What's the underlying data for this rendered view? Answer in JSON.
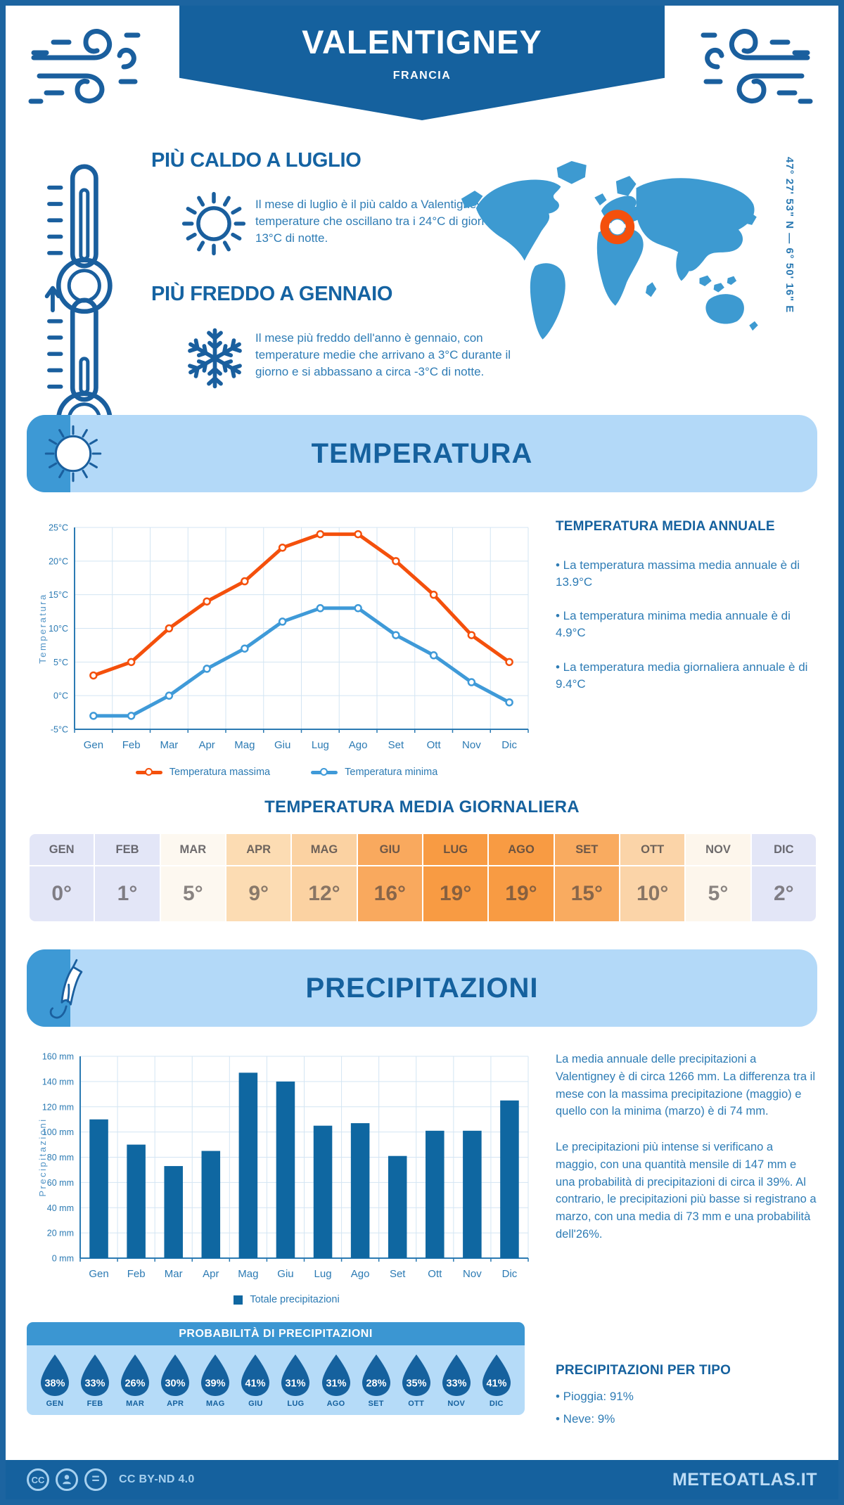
{
  "header": {
    "title": "VALENTIGNEY",
    "subtitle": "FRANCIA"
  },
  "coordinates": "47° 27' 53\" N — 6° 50' 16\" E",
  "hot_section": {
    "title": "PIÙ CALDO A LUGLIO",
    "text": "Il mese di luglio è il più caldo a Valentigney, con temperature che oscillano tra i 24°C di giorno e i 13°C di notte."
  },
  "cold_section": {
    "title": "PIÙ FREDDO A GENNAIO",
    "text": "Il mese più freddo dell'anno è gennaio, con temperature medie che arrivano a 3°C durante il giorno e si abbassano a circa -3°C di notte."
  },
  "temperature_section": {
    "banner": "TEMPERATURA",
    "annual": {
      "heading": "TEMPERATURA MEDIA ANNUALE",
      "bullets": [
        "• La temperatura massima media annuale è di 13.9°C",
        "• La temperatura minima media annuale è di 4.9°C",
        "• La temperatura media giornaliera annuale è di 9.4°C"
      ]
    },
    "daily_heading": "TEMPERATURA MEDIA GIORNALIERA",
    "table": {
      "months": [
        "GEN",
        "FEB",
        "MAR",
        "APR",
        "MAG",
        "GIU",
        "LUG",
        "AGO",
        "SET",
        "OTT",
        "NOV",
        "DIC"
      ],
      "values": [
        "0°",
        "1°",
        "5°",
        "9°",
        "12°",
        "16°",
        "19°",
        "19°",
        "15°",
        "10°",
        "5°",
        "2°"
      ],
      "cell_colors": [
        "#e3e6f7",
        "#e3e6f7",
        "#fdf8f0",
        "#fcdcb3",
        "#fbd2a2",
        "#f9a95e",
        "#f89b43",
        "#f89b43",
        "#f9ab60",
        "#fbd4a8",
        "#fdf6ec",
        "#e3e6f7"
      ]
    }
  },
  "precipitation_section": {
    "banner": "PRECIPITAZIONI",
    "text1": "La media annuale delle precipitazioni a Valentigney è di circa 1266 mm. La differenza tra il mese con la massima precipitazione (maggio) e quello con la minima (marzo) è di 74 mm.",
    "text2": "Le precipitazioni più intense si verificano a maggio, con una quantità mensile di 147 mm e una probabilità di precipitazioni di circa il 39%. Al contrario, le precipitazioni più basse si registrano a marzo, con una media di 73 mm e una probabilità dell'26%.",
    "probability": {
      "heading": "PROBABILITÀ DI PRECIPITAZIONI",
      "months": [
        "GEN",
        "FEB",
        "MAR",
        "APR",
        "MAG",
        "GIU",
        "LUG",
        "AGO",
        "SET",
        "OTT",
        "NOV",
        "DIC"
      ],
      "values": [
        "38%",
        "33%",
        "26%",
        "30%",
        "39%",
        "41%",
        "31%",
        "31%",
        "28%",
        "35%",
        "33%",
        "41%"
      ]
    },
    "per_tipo": {
      "heading": "PRECIPITAZIONI PER TIPO",
      "bullets": [
        "• Pioggia: 91%",
        "• Neve: 9%"
      ]
    }
  },
  "chart_data": [
    {
      "type": "line",
      "categories": [
        "Gen",
        "Feb",
        "Mar",
        "Apr",
        "Mag",
        "Giu",
        "Lug",
        "Ago",
        "Set",
        "Ott",
        "Nov",
        "Dic"
      ],
      "series": [
        {
          "name": "Temperatura massima",
          "color": "#f4500c",
          "values": [
            3,
            5,
            10,
            14,
            17,
            22,
            24,
            24,
            20,
            15,
            9,
            5
          ]
        },
        {
          "name": "Temperatura minima",
          "color": "#3f9ad8",
          "values": [
            -3,
            -3,
            0,
            4,
            7,
            11,
            13,
            13,
            9,
            6,
            2,
            -1
          ]
        }
      ],
      "ylabel": "Temperatura",
      "ylim": [
        -5,
        25
      ],
      "ytick_step": 5,
      "ytick_suffix": "°C",
      "grid": true,
      "legend_position": "bottom"
    },
    {
      "type": "bar",
      "categories": [
        "Gen",
        "Feb",
        "Mar",
        "Apr",
        "Mag",
        "Giu",
        "Lug",
        "Ago",
        "Set",
        "Ott",
        "Nov",
        "Dic"
      ],
      "values": [
        110,
        90,
        73,
        85,
        147,
        140,
        105,
        107,
        81,
        101,
        101,
        125
      ],
      "legend": "Totale precipitazioni",
      "bar_color": "#0f67a1",
      "ylabel": "Precipitazioni",
      "ylim": [
        0,
        160
      ],
      "ytick_step": 20,
      "ytick_suffix": " mm",
      "grid": true,
      "legend_position": "bottom"
    }
  ],
  "colors": {
    "primary_blue": "#15619e",
    "band_blue": "#3d99d5",
    "light_banner_blue": "#b3d9f8",
    "map_blue": "#3d9ad1",
    "marker_orange": "#f4500c",
    "droplet_blue": "#15619e",
    "text_blue": "#2e7cb5"
  },
  "footer": {
    "license": "CC BY-ND 4.0",
    "brand": "METEOATLAS.IT"
  }
}
